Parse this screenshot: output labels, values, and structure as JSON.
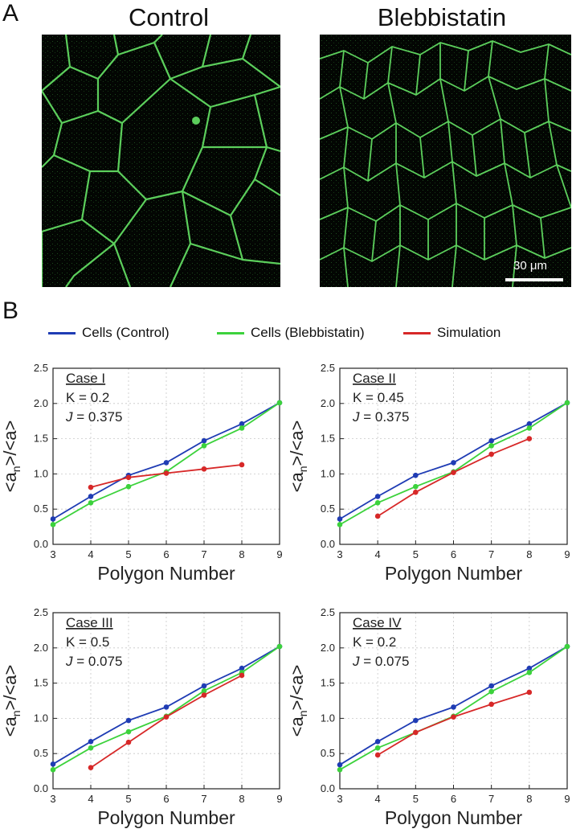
{
  "panels": {
    "a_letter": "A",
    "b_letter": "B"
  },
  "images": {
    "left_title": "Control",
    "right_title": "Blebbistatin",
    "scale_bar_label": "30 μm"
  },
  "legend": [
    {
      "name": "Cells (Control)",
      "color": "#1f3cb4"
    },
    {
      "name": "Cells (Blebbistatin)",
      "color": "#3cd23c"
    },
    {
      "name": "Simulation",
      "color": "#d72828"
    }
  ],
  "chart_data": [
    {
      "type": "line",
      "title": "Case I",
      "params": [
        "K = 0.2",
        "J = 0.375"
      ],
      "xlabel": "Polygon Number",
      "ylabel": "<an>/<a>",
      "xlim": [
        3,
        9
      ],
      "ylim": [
        0.0,
        2.5
      ],
      "xticks": [
        "3",
        "4",
        "5",
        "6",
        "7",
        "8",
        "9"
      ],
      "yticks": [
        "0.0",
        "0.5",
        "1.0",
        "1.5",
        "2.0",
        "2.5"
      ],
      "grid": true,
      "series": [
        {
          "name": "Cells (Control)",
          "color": "#1f3cb4",
          "x": [
            3,
            4,
            5,
            6,
            7,
            8,
            9
          ],
          "y": [
            0.36,
            0.68,
            0.98,
            1.16,
            1.47,
            1.71,
            2.01
          ]
        },
        {
          "name": "Cells (Blebbistatin)",
          "color": "#3cd23c",
          "x": [
            3,
            4,
            5,
            6,
            7,
            8,
            9
          ],
          "y": [
            0.28,
            0.59,
            0.82,
            1.03,
            1.4,
            1.65,
            2.01
          ]
        },
        {
          "name": "Simulation",
          "color": "#d72828",
          "x": [
            4,
            5,
            6,
            7,
            8
          ],
          "y": [
            0.81,
            0.95,
            1.01,
            1.07,
            1.13
          ]
        }
      ]
    },
    {
      "type": "line",
      "title": "Case II",
      "params": [
        "K = 0.45",
        "J = 0.375"
      ],
      "xlabel": "Polygon Number",
      "ylabel": "<an>/<a>",
      "xlim": [
        3,
        9
      ],
      "ylim": [
        0.0,
        2.5
      ],
      "xticks": [
        "3",
        "4",
        "5",
        "6",
        "7",
        "8",
        "9"
      ],
      "yticks": [
        "0.0",
        "0.5",
        "1.0",
        "1.5",
        "2.0",
        "2.5"
      ],
      "grid": true,
      "series": [
        {
          "name": "Cells (Control)",
          "color": "#1f3cb4",
          "x": [
            3,
            4,
            5,
            6,
            7,
            8,
            9
          ],
          "y": [
            0.36,
            0.68,
            0.98,
            1.16,
            1.47,
            1.71,
            2.01
          ]
        },
        {
          "name": "Cells (Blebbistatin)",
          "color": "#3cd23c",
          "x": [
            3,
            4,
            5,
            6,
            7,
            8,
            9
          ],
          "y": [
            0.28,
            0.59,
            0.82,
            1.03,
            1.4,
            1.65,
            2.01
          ]
        },
        {
          "name": "Simulation",
          "color": "#d72828",
          "x": [
            4,
            5,
            6,
            7,
            8
          ],
          "y": [
            0.4,
            0.74,
            1.02,
            1.28,
            1.5
          ]
        }
      ]
    },
    {
      "type": "line",
      "title": "Case III",
      "params": [
        "K = 0.5",
        "J = 0.075"
      ],
      "xlabel": "Polygon Number",
      "ylabel": "<an>/<a>",
      "xlim": [
        3,
        9
      ],
      "ylim": [
        0.0,
        2.5
      ],
      "xticks": [
        "3",
        "4",
        "5",
        "6",
        "7",
        "8",
        "9"
      ],
      "yticks": [
        "0.0",
        "0.5",
        "1.0",
        "1.5",
        "2.0",
        "2.5"
      ],
      "grid": true,
      "series": [
        {
          "name": "Cells (Control)",
          "color": "#1f3cb4",
          "x": [
            3,
            4,
            5,
            6,
            7,
            8,
            9
          ],
          "y": [
            0.35,
            0.67,
            0.97,
            1.16,
            1.46,
            1.71,
            2.02
          ]
        },
        {
          "name": "Cells (Blebbistatin)",
          "color": "#3cd23c",
          "x": [
            3,
            4,
            5,
            6,
            7,
            8,
            9
          ],
          "y": [
            0.27,
            0.58,
            0.81,
            1.03,
            1.39,
            1.65,
            2.02
          ]
        },
        {
          "name": "Simulation",
          "color": "#d72828",
          "x": [
            4,
            5,
            6,
            7,
            8
          ],
          "y": [
            0.3,
            0.66,
            1.02,
            1.33,
            1.61
          ]
        }
      ]
    },
    {
      "type": "line",
      "title": "Case IV",
      "params": [
        "K = 0.2",
        "J = 0.075"
      ],
      "xlabel": "Polygon Number",
      "ylabel": "<an>/<a>",
      "xlim": [
        3,
        9
      ],
      "ylim": [
        0.0,
        2.5
      ],
      "xticks": [
        "3",
        "4",
        "5",
        "6",
        "7",
        "8",
        "9"
      ],
      "yticks": [
        "0.0",
        "0.5",
        "1.0",
        "1.5",
        "2.0",
        "2.5"
      ],
      "grid": true,
      "series": [
        {
          "name": "Cells (Control)",
          "color": "#1f3cb4",
          "x": [
            3,
            4,
            5,
            6,
            7,
            8,
            9
          ],
          "y": [
            0.34,
            0.67,
            0.97,
            1.16,
            1.46,
            1.71,
            2.02
          ]
        },
        {
          "name": "Cells (Blebbistatin)",
          "color": "#3cd23c",
          "x": [
            3,
            4,
            5,
            6,
            7,
            8,
            9
          ],
          "y": [
            0.27,
            0.58,
            0.8,
            1.03,
            1.38,
            1.65,
            2.02
          ]
        },
        {
          "name": "Simulation",
          "color": "#d72828",
          "x": [
            4,
            5,
            6,
            7,
            8
          ],
          "y": [
            0.48,
            0.8,
            1.02,
            1.2,
            1.37
          ]
        }
      ]
    }
  ]
}
